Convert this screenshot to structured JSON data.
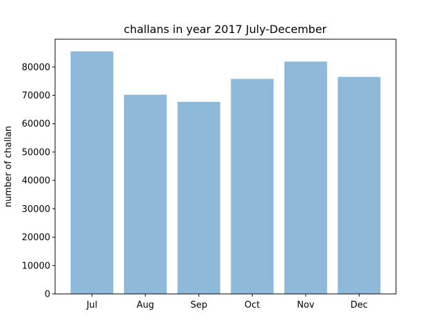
{
  "chart_data": {
    "type": "bar",
    "title": "challans in year 2017 July-December",
    "xlabel": "",
    "ylabel": "number of challan",
    "categories": [
      "Jul",
      "Aug",
      "Sep",
      "Oct",
      "Nov",
      "Dec"
    ],
    "values": [
      85500,
      70200,
      67700,
      75800,
      81900,
      76500
    ],
    "ylim": [
      0,
      89775
    ],
    "yticks": [
      0,
      10000,
      20000,
      30000,
      40000,
      50000,
      60000,
      70000,
      80000
    ],
    "bar_color": "#8fb9d9",
    "grid": false,
    "legend": "none"
  }
}
